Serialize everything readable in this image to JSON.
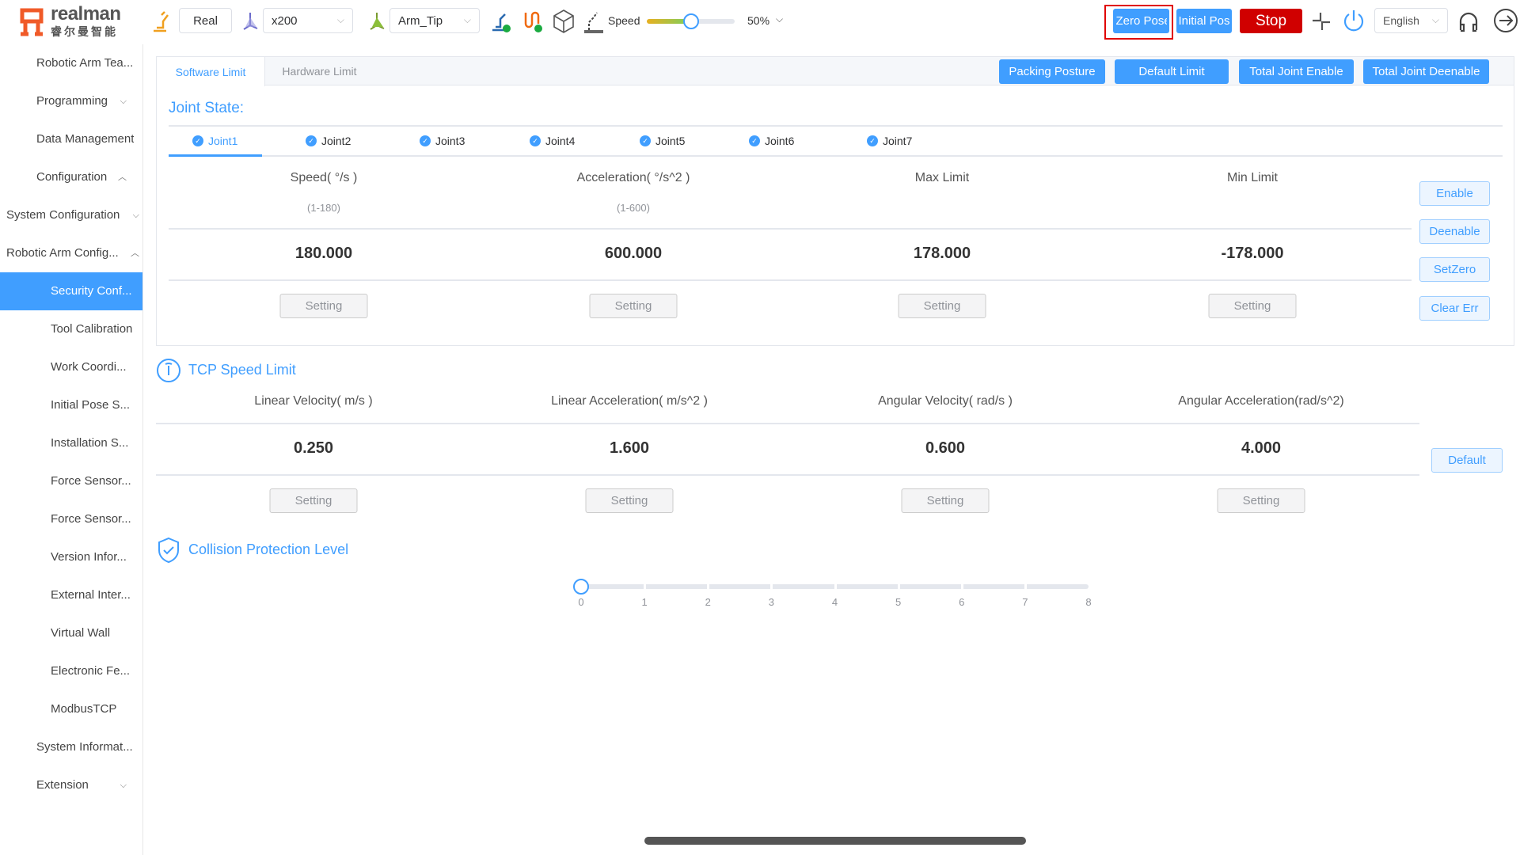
{
  "header": {
    "logo_text": "realman",
    "logo_sub": "睿尔曼智能",
    "mode": "Real",
    "coord_select": "x200",
    "tool_select": "Arm_Tip",
    "speed_label": "Speed",
    "speed_percent": 50,
    "speed_text": "50%",
    "zero_pose": "Zero Pose",
    "initial_pos": "Initial Pos",
    "stop": "Stop",
    "language": "English",
    "colors": {
      "accent": "#409eff",
      "stop": "#d00000"
    }
  },
  "sidebar": {
    "items": [
      {
        "label": "Robotic Arm Tea...",
        "icon": "home-icon"
      },
      {
        "label": "Programming",
        "icon": "code-monitor-icon",
        "chevron": "down"
      },
      {
        "label": "Data Management",
        "icon": "database-icon"
      },
      {
        "label": "Configuration",
        "icon": "gear-icon",
        "chevron": "up"
      },
      {
        "label": "System Configuration",
        "chevron": "down"
      },
      {
        "label": "Robotic Arm Config...",
        "chevron": "up"
      },
      {
        "label": "Security Conf...",
        "active": true
      },
      {
        "label": "Tool Calibration"
      },
      {
        "label": "Work Coordi..."
      },
      {
        "label": "Initial Pose S..."
      },
      {
        "label": "Installation S..."
      },
      {
        "label": "Force Sensor..."
      },
      {
        "label": "Force Sensor..."
      },
      {
        "label": "Version Infor..."
      },
      {
        "label": "External Inter..."
      },
      {
        "label": "Virtual Wall"
      },
      {
        "label": "Electronic Fe..."
      },
      {
        "label": "ModbusTCP"
      },
      {
        "label": "System Informat...",
        "icon": "waveform-icon"
      },
      {
        "label": "Extension",
        "icon": "grid-icon",
        "chevron": "down"
      }
    ]
  },
  "main": {
    "tabs": [
      "Software Limit",
      "Hardware Limit"
    ],
    "actions": [
      "Packing Posture",
      "Default Limit",
      "Total Joint Enable",
      "Total Joint Deenable"
    ],
    "joint_state_title": "Joint State:",
    "joints": [
      "Joint1",
      "Joint2",
      "Joint3",
      "Joint4",
      "Joint5",
      "Joint6",
      "Joint7"
    ],
    "joint_columns": [
      {
        "header": "Speed( °/s )",
        "range": "(1-180)",
        "value": "180.000",
        "button": "Setting"
      },
      {
        "header": "Acceleration( °/s^2 )",
        "range": "(1-600)",
        "value": "600.000",
        "button": "Setting"
      },
      {
        "header": "Max Limit",
        "range": "",
        "value": "178.000",
        "button": "Setting"
      },
      {
        "header": "Min Limit",
        "range": "",
        "value": "-178.000",
        "button": "Setting"
      }
    ],
    "joint_buttons": [
      "Enable",
      "Deenable",
      "SetZero",
      "Clear Err"
    ],
    "tcp_title": "TCP Speed Limit",
    "tcp_columns": [
      {
        "header": "Linear Velocity( m/s )",
        "value": "0.250",
        "button": "Setting"
      },
      {
        "header": "Linear Acceleration( m/s^2 )",
        "value": "1.600",
        "button": "Setting"
      },
      {
        "header": "Angular Velocity( rad/s )",
        "value": "0.600",
        "button": "Setting"
      },
      {
        "header": "Angular Acceleration(rad/s^2)",
        "value": "4.000",
        "button": "Setting"
      }
    ],
    "tcp_default": "Default",
    "collision_title": "Collision Protection Level",
    "collision_level": 0,
    "collision_ticks": [
      "0",
      "1",
      "2",
      "3",
      "4",
      "5",
      "6",
      "7",
      "8"
    ]
  }
}
